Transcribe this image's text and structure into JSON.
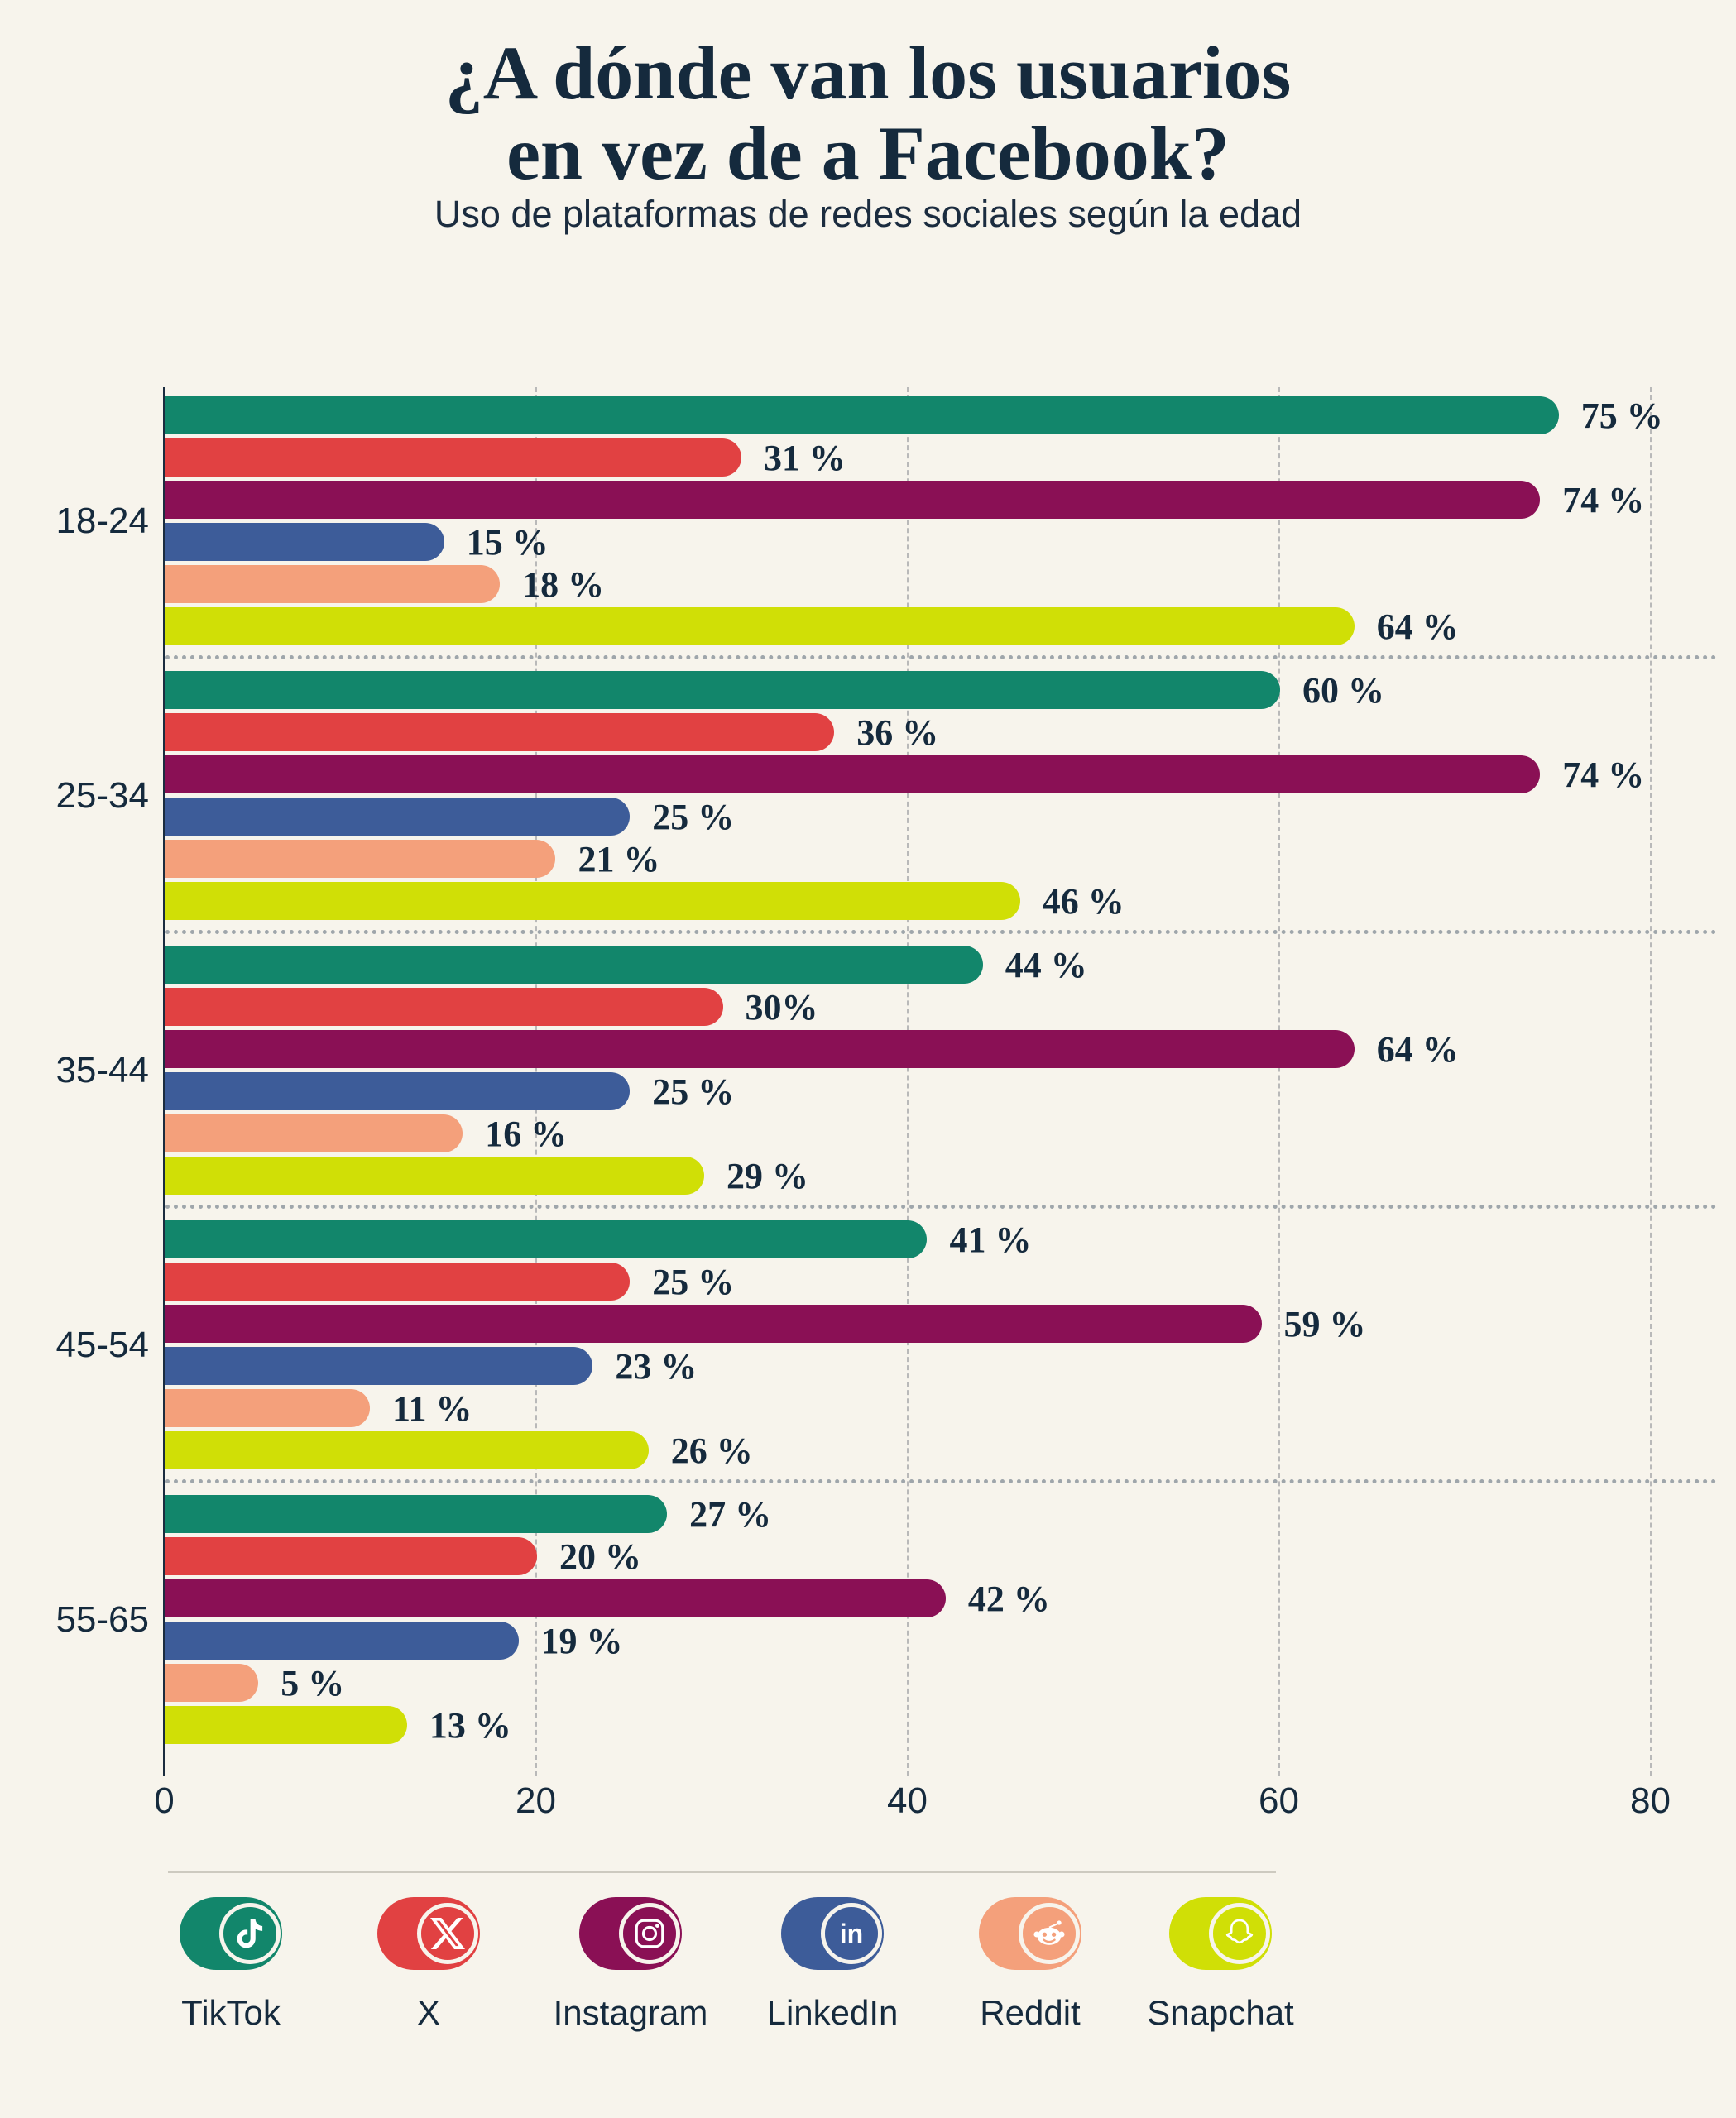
{
  "title": {
    "line1": "¿A dónde van los usuarios",
    "line2": "en vez de a Facebook?"
  },
  "subtitle": "Uso de plataformas de redes sociales según la edad",
  "chart_data": {
    "type": "bar",
    "orientation": "horizontal",
    "title": "¿A dónde van los usuarios en vez de a Facebook?",
    "subtitle": "Uso de plataformas de redes sociales según la edad",
    "categories": [
      "18-24",
      "25-34",
      "35-44",
      "45-54",
      "55-65"
    ],
    "series": [
      {
        "name": "TikTok",
        "color": "#12866B",
        "values": [
          75,
          60,
          44,
          41,
          27
        ],
        "labels": [
          "75 %",
          "60 %",
          "44 %",
          "41 %",
          "27 %"
        ]
      },
      {
        "name": "X",
        "color": "#E14142",
        "values": [
          31,
          36,
          30,
          25,
          20
        ],
        "labels": [
          "31 %",
          "36 %",
          "30%",
          "25 %",
          "20 %"
        ]
      },
      {
        "name": "Instagram",
        "color": "#8A1055",
        "values": [
          74,
          74,
          64,
          59,
          42
        ],
        "labels": [
          "74 %",
          "74 %",
          "64 %",
          "59 %",
          "42 %"
        ]
      },
      {
        "name": "LinkedIn",
        "color": "#3D5C99",
        "values": [
          15,
          25,
          25,
          23,
          19
        ],
        "labels": [
          "15 %",
          "25 %",
          "25 %",
          "23 %",
          "19 %"
        ]
      },
      {
        "name": "Reddit",
        "color": "#F4A07B",
        "values": [
          18,
          21,
          16,
          11,
          5
        ],
        "labels": [
          "18 %",
          "21 %",
          "16 %",
          "11 %",
          "5 %"
        ]
      },
      {
        "name": "Snapchat",
        "color": "#D0DF06",
        "values": [
          64,
          46,
          29,
          26,
          13
        ],
        "labels": [
          "64 %",
          "46 %",
          "29 %",
          "26 %",
          "13 %"
        ]
      }
    ],
    "xlim": [
      0,
      80
    ],
    "x_tick_values": [
      0,
      20,
      40,
      60,
      80
    ],
    "x_tick_labels": [
      "0",
      "20",
      "40",
      "60",
      "80"
    ],
    "grid": "vertical-dashed",
    "group_separator": "dotted",
    "legend_position": "bottom"
  },
  "legend": {
    "items": [
      {
        "label": "TikTok",
        "platform": "tiktok",
        "icon": "tiktok-icon",
        "color": "#12866B"
      },
      {
        "label": "X",
        "platform": "x",
        "icon": "x-icon",
        "color": "#E14142"
      },
      {
        "label": "Instagram",
        "platform": "instagram",
        "icon": "instagram-icon",
        "color": "#8A1055"
      },
      {
        "label": "LinkedIn",
        "platform": "linkedin",
        "icon": "linkedin-icon",
        "color": "#3D5C99"
      },
      {
        "label": "Reddit",
        "platform": "reddit",
        "icon": "reddit-icon",
        "color": "#F4A07B"
      },
      {
        "label": "Snapchat",
        "platform": "snapchat",
        "icon": "snapchat-icon",
        "color": "#D0DF06"
      }
    ]
  },
  "colors": {
    "background": "#F7F4EC",
    "text": "#152A3D",
    "gridline": "#B9B9B9",
    "axis": "#1B2C3F",
    "separator": "#9FA6AB",
    "legend_divider": "#CDCAC0"
  }
}
